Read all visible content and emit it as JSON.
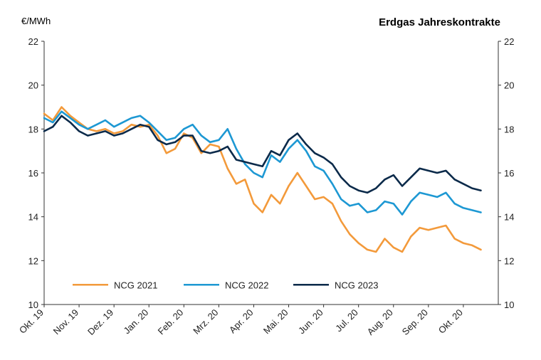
{
  "chart_data": {
    "type": "line",
    "title": "Erdgas Jahreskontrakte",
    "ylabel": "€/MWh",
    "xlabel": "",
    "ylim": [
      10,
      22
    ],
    "yticks": [
      10,
      12,
      14,
      16,
      18,
      20,
      22
    ],
    "grid": false,
    "legend_position": "bottom-center",
    "categories": [
      "Okt. 19",
      "Nov. 19",
      "Dez. 19",
      "Jan. 20",
      "Feb. 20",
      "Mrz. 20",
      "Apr. 20",
      "Mai. 20",
      "Jun. 20",
      "Jul. 20",
      "Aug. 20",
      "Sep. 20",
      "Okt. 20"
    ],
    "x": [
      0,
      0.25,
      0.5,
      0.75,
      1,
      1.25,
      1.5,
      1.75,
      2,
      2.25,
      2.5,
      2.75,
      3,
      3.25,
      3.5,
      3.75,
      4,
      4.25,
      4.5,
      4.75,
      5,
      5.25,
      5.5,
      5.75,
      6,
      6.25,
      6.5,
      6.75,
      7,
      7.25,
      7.5,
      7.75,
      8,
      8.25,
      8.5,
      8.75,
      9,
      9.25,
      9.5,
      9.75,
      10,
      10.25,
      10.5,
      10.75,
      11,
      11.25,
      11.5,
      11.75,
      12,
      12.25,
      12.5
    ],
    "series": [
      {
        "name": "NCG 2021",
        "color": "#f39a3b",
        "values": [
          18.7,
          18.4,
          19.0,
          18.6,
          18.3,
          18.0,
          17.9,
          18.0,
          17.8,
          17.9,
          18.2,
          18.1,
          18.2,
          17.7,
          16.9,
          17.1,
          17.8,
          17.6,
          16.9,
          17.3,
          17.2,
          16.2,
          15.5,
          15.7,
          14.6,
          14.2,
          15.0,
          14.6,
          15.4,
          16.0,
          15.4,
          14.8,
          14.9,
          14.6,
          13.8,
          13.2,
          12.8,
          12.5,
          12.4,
          13.0,
          12.6,
          12.4,
          13.1,
          13.5,
          13.4,
          13.5,
          13.6,
          13.0,
          12.8,
          12.7,
          12.5
        ]
      },
      {
        "name": "NCG 2022",
        "color": "#1d98d3",
        "values": [
          18.5,
          18.3,
          18.8,
          18.5,
          18.2,
          18.0,
          18.2,
          18.4,
          18.1,
          18.3,
          18.5,
          18.6,
          18.3,
          17.9,
          17.5,
          17.6,
          18.0,
          18.2,
          17.7,
          17.4,
          17.5,
          18.0,
          17.1,
          16.4,
          16.0,
          15.8,
          16.8,
          16.5,
          17.1,
          17.5,
          17.0,
          16.3,
          16.1,
          15.5,
          14.8,
          14.5,
          14.6,
          14.2,
          14.3,
          14.7,
          14.6,
          14.1,
          14.7,
          15.1,
          15.0,
          14.9,
          15.1,
          14.6,
          14.4,
          14.3,
          14.2
        ]
      },
      {
        "name": "NCG 2023",
        "color": "#0b2a4a",
        "values": [
          17.9,
          18.1,
          18.6,
          18.3,
          17.9,
          17.7,
          17.8,
          17.9,
          17.7,
          17.8,
          18.0,
          18.2,
          18.1,
          17.5,
          17.3,
          17.4,
          17.7,
          17.7,
          17.0,
          16.9,
          17.0,
          17.2,
          16.6,
          16.5,
          16.4,
          16.3,
          17.0,
          16.8,
          17.5,
          17.8,
          17.3,
          16.9,
          16.7,
          16.4,
          15.8,
          15.4,
          15.2,
          15.1,
          15.3,
          15.7,
          15.9,
          15.4,
          15.8,
          16.2,
          16.1,
          16.0,
          16.1,
          15.7,
          15.5,
          15.3,
          15.2
        ]
      }
    ]
  }
}
